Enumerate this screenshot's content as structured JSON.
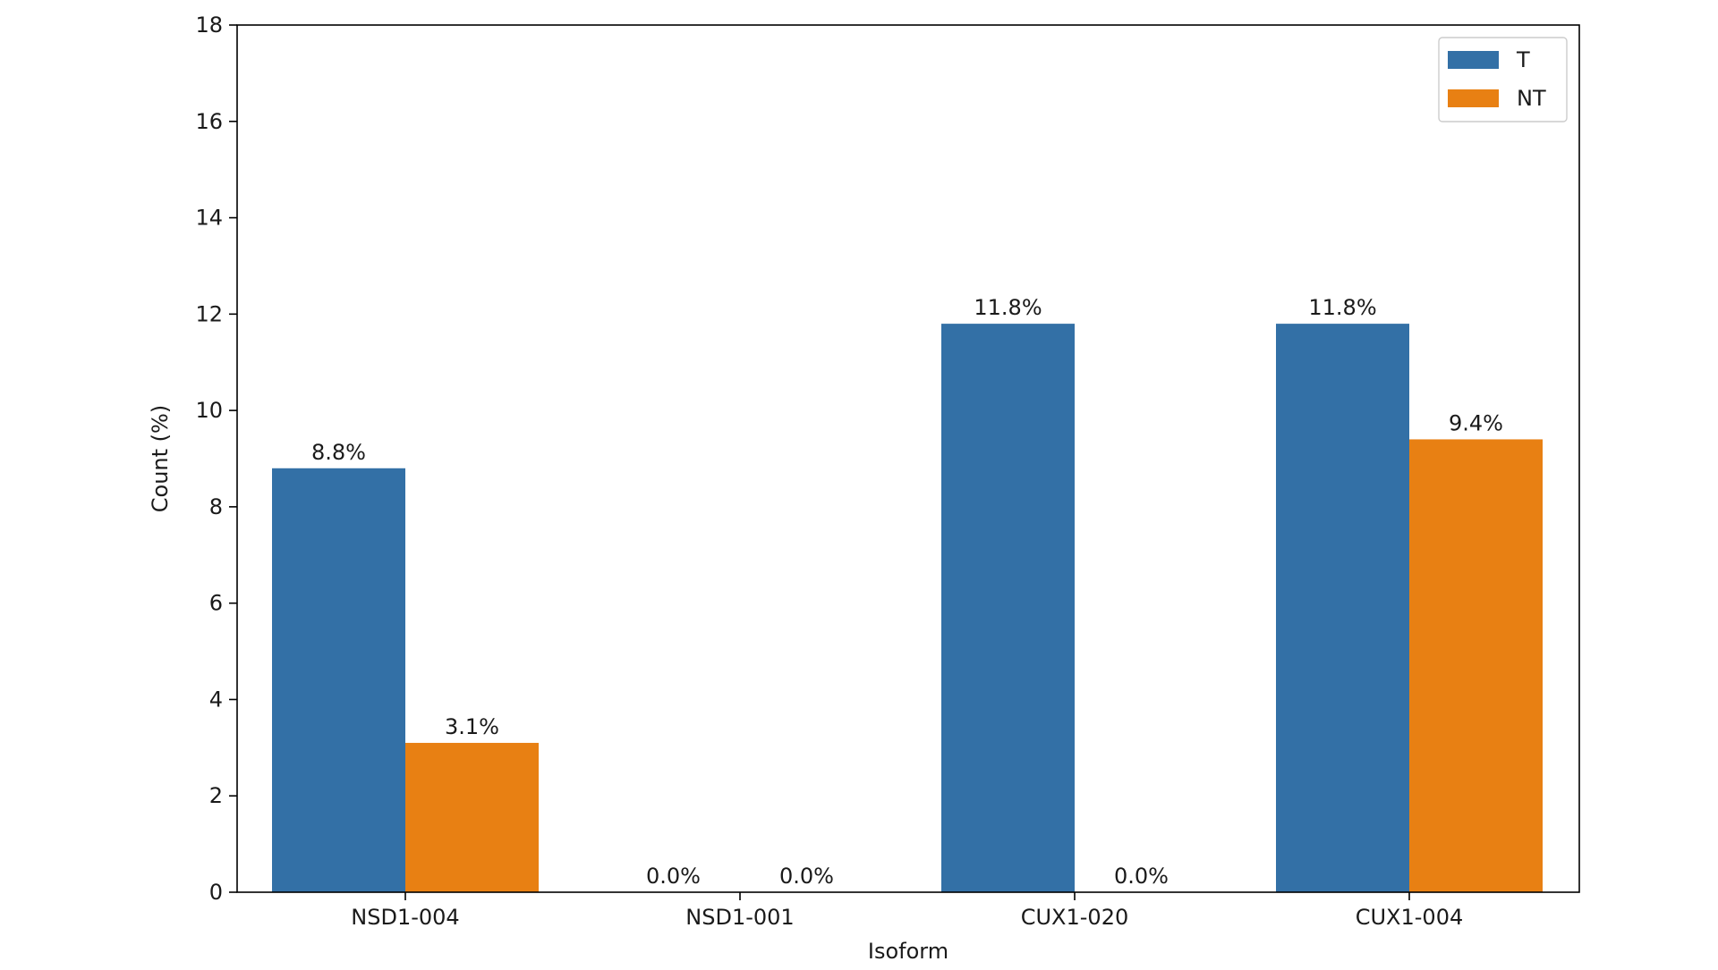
{
  "chart_data": {
    "type": "bar",
    "title": "",
    "xlabel": "Isoform",
    "ylabel": "Count (%)",
    "ylim": [
      0,
      18
    ],
    "yticks": [
      "0",
      "2",
      "4",
      "6",
      "8",
      "10",
      "12",
      "14",
      "16",
      "18"
    ],
    "categories": [
      "NSD1-004",
      "NSD1-001",
      "CUX1-020",
      "CUX1-004"
    ],
    "series": [
      {
        "name": "T",
        "color": "#3370a6",
        "values": [
          8.8,
          0.0,
          11.8,
          11.8
        ],
        "labels": [
          "8.8%",
          "0.0%",
          "11.8%",
          "11.8%"
        ]
      },
      {
        "name": "NT",
        "color": "#e88013",
        "values": [
          3.1,
          0.0,
          0.0,
          9.4
        ],
        "labels": [
          "3.1%",
          "0.0%",
          "0.0%",
          "9.4%"
        ]
      }
    ],
    "grid": false,
    "legend_position": "top-right"
  }
}
